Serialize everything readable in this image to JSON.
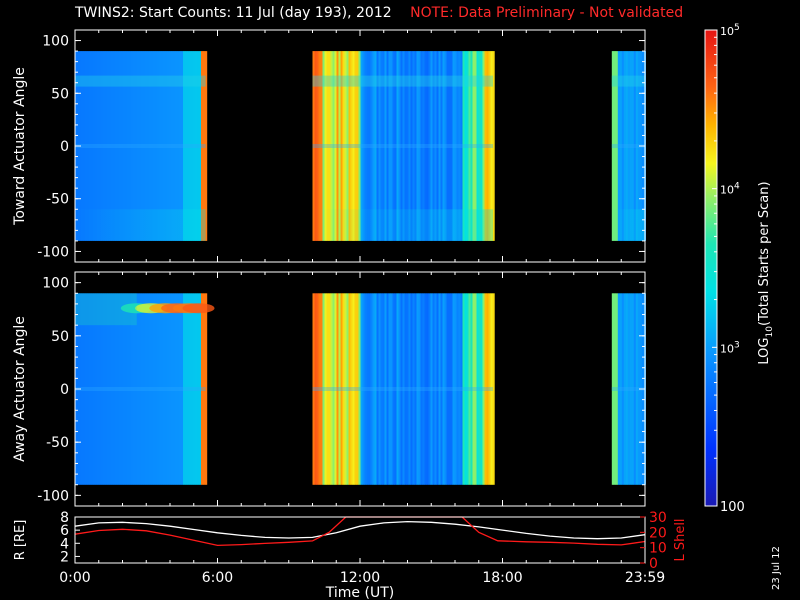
{
  "title": {
    "main": "TWINS2: Start Counts: 11 Jul (day 193), 2012",
    "note": "NOTE: Data Preliminary - Not validated"
  },
  "date_stamp": "23 Jul 12",
  "colors": {
    "background": "#000000",
    "foreground": "#ffffff",
    "note": "#ff2a2a",
    "lshell": "#ff1a1a",
    "radius": "#ffffff"
  },
  "chart_data": [
    {
      "type": "heatmap",
      "panel": "top",
      "ylabel": "Toward Actuator Angle",
      "ylim": [
        -110,
        110
      ],
      "yticks": [
        100,
        50,
        0,
        -50,
        -100
      ],
      "data_y_range": [
        -90,
        90
      ],
      "xlim_hours": [
        0,
        24
      ],
      "data_intervals_hours": [
        [
          0.0,
          5.5
        ],
        [
          10.0,
          17.6
        ],
        [
          22.6,
          24.0
        ]
      ],
      "coverage_gaps": "black (no data)",
      "features": [
        "enhanced counts near +60 deg",
        "faint band at 0 deg",
        "high counts (red/orange) near 5.3 h and 9.9-12.0 h and 16.4-17.6 h"
      ]
    },
    {
      "type": "heatmap",
      "panel": "middle",
      "ylabel": "Away Actuator Angle",
      "ylim": [
        -110,
        110
      ],
      "yticks": [
        100,
        50,
        0,
        -50,
        -100
      ],
      "data_y_range": [
        -90,
        90
      ],
      "xlim_hours": [
        0,
        24
      ],
      "data_intervals_hours": [
        [
          0.0,
          5.5
        ],
        [
          10.0,
          17.6
        ],
        [
          22.6,
          24.0
        ]
      ],
      "coverage_gaps": "black (no data)",
      "features": [
        "red/orange enhancement near +75 deg from 2.5 to 5.5 h",
        "faint band at 0 deg",
        "high counts (red/orange) near 9.9-12.0 h"
      ]
    },
    {
      "type": "line",
      "panel": "bottom",
      "ylabel_left": "R [RE]",
      "ylabel_right": "L Shell",
      "left_ylim": [
        1,
        8
      ],
      "left_yticks": [
        8,
        6,
        4,
        2
      ],
      "right_ylim": [
        0,
        30
      ],
      "right_yticks": [
        30,
        20,
        10,
        0
      ],
      "x_tick_labels": [
        "0:00",
        "6:00",
        "12:00",
        "18:00",
        "23:59"
      ],
      "x_tick_hours": [
        0,
        6,
        12,
        18,
        24
      ],
      "xlabel": "Time (UT)",
      "series": [
        {
          "name": "R [RE]",
          "color": "#ffffff",
          "x": [
            0,
            1,
            2,
            3,
            4,
            5,
            6,
            7,
            8,
            9,
            10,
            11,
            12,
            13,
            14,
            15,
            16,
            17,
            18,
            19,
            20,
            21,
            22,
            23,
            24
          ],
          "y": [
            6.6,
            7.1,
            7.2,
            7.0,
            6.6,
            6.1,
            5.6,
            5.2,
            4.9,
            4.8,
            4.9,
            5.6,
            6.6,
            7.1,
            7.3,
            7.2,
            6.9,
            6.5,
            6.0,
            5.5,
            5.1,
            4.8,
            4.7,
            4.8,
            5.3
          ]
        },
        {
          "name": "L Shell",
          "color": "#ff1a1a",
          "x": [
            0,
            1,
            2,
            3,
            4,
            5,
            6,
            7,
            8,
            9,
            10,
            10.7,
            11.4,
            16.3,
            17.0,
            17.8,
            19,
            20,
            21,
            22,
            23,
            24
          ],
          "y": [
            18.8,
            21.2,
            22.0,
            21.0,
            18.2,
            14.8,
            11.5,
            12.0,
            12.8,
            13.5,
            14.4,
            20.0,
            30.0,
            30.0,
            20.0,
            14.5,
            13.8,
            13.5,
            13.0,
            12.2,
            11.8,
            14.0
          ]
        }
      ]
    },
    {
      "type": "heatmap",
      "panel": "colorbar",
      "label": "LOG10(Total Starts per Scan)",
      "label_base": "LOG",
      "label_sub": "10",
      "label_rest": "(Total Starts per Scan)",
      "tick_labels": [
        "10^5",
        "10^4",
        "10^3",
        "100"
      ],
      "ticks": [
        100000,
        10000,
        1000,
        100
      ],
      "range": [
        100,
        100000
      ],
      "scale": "log"
    }
  ]
}
